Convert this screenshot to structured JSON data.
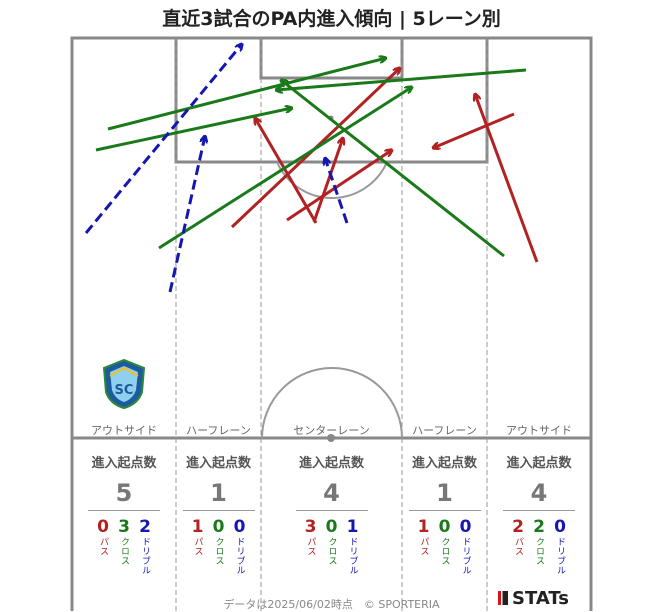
{
  "title": "直近3試合のPA内進入傾向 | 5レーン別",
  "lanes": [
    {
      "label": "アウトサイド",
      "header": "進入起点数",
      "total": "5",
      "breakdown": [
        {
          "value": "0",
          "label": "パス"
        },
        {
          "value": "3",
          "label": "クロス"
        },
        {
          "value": "2",
          "label": "ドリブル"
        }
      ]
    },
    {
      "label": "ハーフレーン",
      "header": "進入起点数",
      "total": "1",
      "breakdown": [
        {
          "value": "1",
          "label": "パス"
        },
        {
          "value": "0",
          "label": "クロス"
        },
        {
          "value": "0",
          "label": "ドリブル"
        }
      ]
    },
    {
      "label": "センターレーン",
      "header": "進入起点数",
      "total": "4",
      "breakdown": [
        {
          "value": "3",
          "label": "パス"
        },
        {
          "value": "0",
          "label": "クロス"
        },
        {
          "value": "1",
          "label": "ドリブル"
        }
      ]
    },
    {
      "label": "ハーフレーン",
      "header": "進入起点数",
      "total": "1",
      "breakdown": [
        {
          "value": "1",
          "label": "パス"
        },
        {
          "value": "0",
          "label": "クロス"
        },
        {
          "value": "0",
          "label": "ドリブル"
        }
      ]
    },
    {
      "label": "アウトサイド",
      "header": "進入起点数",
      "total": "4",
      "breakdown": [
        {
          "value": "2",
          "label": "パス"
        },
        {
          "value": "2",
          "label": "クロス"
        },
        {
          "value": "0",
          "label": "ドリブル"
        }
      ]
    }
  ],
  "crest_text": "SC",
  "footer": "データは2025/06/02時点　© SPORTERIA",
  "brand": "STATs",
  "colors": {
    "pass": "#b22222",
    "cross": "#1a7a1a",
    "dribble": "#1616b0",
    "pitch_line": "#888888"
  }
}
